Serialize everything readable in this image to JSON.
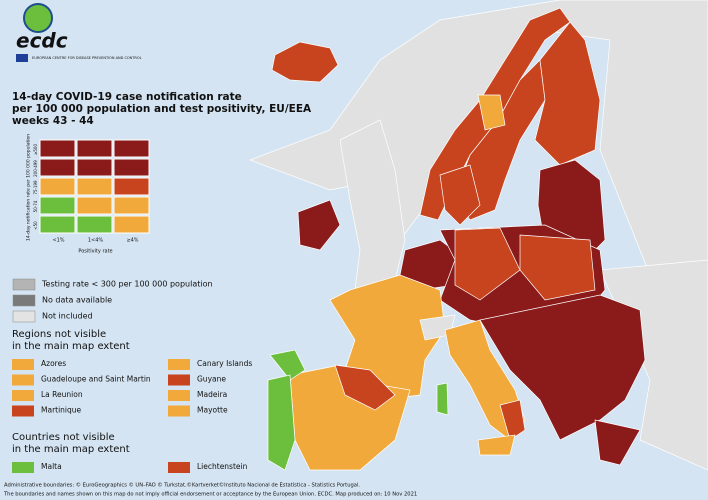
{
  "logo": {
    "name": "ecdc",
    "subtitle": "EUROPEAN CENTRE FOR DISEASE PREVENTION AND CONTROL"
  },
  "header": {
    "title": [
      "14-day COVID-19 case notification rate",
      "per 100 000 population and test positivity, EU/EEA",
      "weeks 43 - 44"
    ]
  },
  "matrix": {
    "y_title": "14-day notification rate per 100 000 population",
    "x_title": "Positivity rate",
    "rows": [
      "≥500",
      "200-499",
      "75-199",
      "50-74",
      "<50"
    ],
    "columns": [
      "<1%",
      "1<4%",
      "≥4%"
    ],
    "colors": [
      [
        "#8b1a1a",
        "#8b1a1a",
        "#8b1a1a"
      ],
      [
        "#8b1a1a",
        "#8b1a1a",
        "#8b1a1a"
      ],
      [
        "#f2a93b",
        "#f2a93b",
        "#c8441f"
      ],
      [
        "#6cbf3c",
        "#f2a93b",
        "#f2a93b"
      ],
      [
        "#6cbf3c",
        "#6cbf3c",
        "#f2a93b"
      ]
    ]
  },
  "legend": {
    "items": [
      {
        "label": "Testing rate < 300 per 100 000 population",
        "color": "#b4b4b4"
      },
      {
        "label": "No data available",
        "color": "#7a7a7a"
      },
      {
        "label": "Not included",
        "color": "#e3e3e3"
      }
    ]
  },
  "regions": {
    "title": [
      "Regions not visible",
      "in the main map extent"
    ],
    "items": [
      {
        "label": "Azores",
        "color": "#f2a93b"
      },
      {
        "label": "Canary Islands",
        "color": "#f2a93b"
      },
      {
        "label": "Guadeloupe and Saint Martin",
        "color": "#f2a93b"
      },
      {
        "label": "Guyane",
        "color": "#c8441f"
      },
      {
        "label": "La Reunion",
        "color": "#f2a93b"
      },
      {
        "label": "Madeira",
        "color": "#f2a93b"
      },
      {
        "label": "Martinique",
        "color": "#c8441f"
      },
      {
        "label": "Mayotte",
        "color": "#f2a93b"
      }
    ]
  },
  "countries": {
    "title": [
      "Countries not visible",
      "in the main map extent"
    ],
    "items": [
      {
        "label": "Malta",
        "color": "#6cbf3c"
      },
      {
        "label": "Liechtenstein",
        "color": "#c8441f"
      }
    ]
  },
  "footer": [
    "Administrative boundaries: © EuroGeographics © UN–FAO © Turkstat.©Kartverket©Instituto Nacional de Estatística - Statistics Portugal.",
    "The boundaries and names shown on this map do not imply official endorsement or acceptance by the European Union. ECDC. Map produced on: 10 Nov 2021"
  ]
}
